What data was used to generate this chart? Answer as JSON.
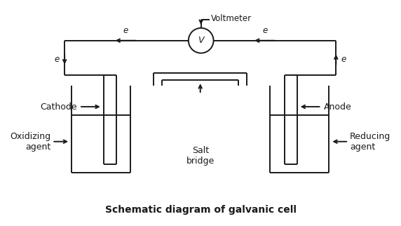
{
  "title": "Schematic diagram of galvanic cell",
  "title_fontsize": 10,
  "background_color": "#ffffff",
  "line_color": "#1a1a1a",
  "text_color": "#1a1a1a",
  "voltmeter_label": "V",
  "voltmeter_top_label": "Voltmeter",
  "salt_bridge_label": "Salt\nbridge",
  "electron_label": "e"
}
